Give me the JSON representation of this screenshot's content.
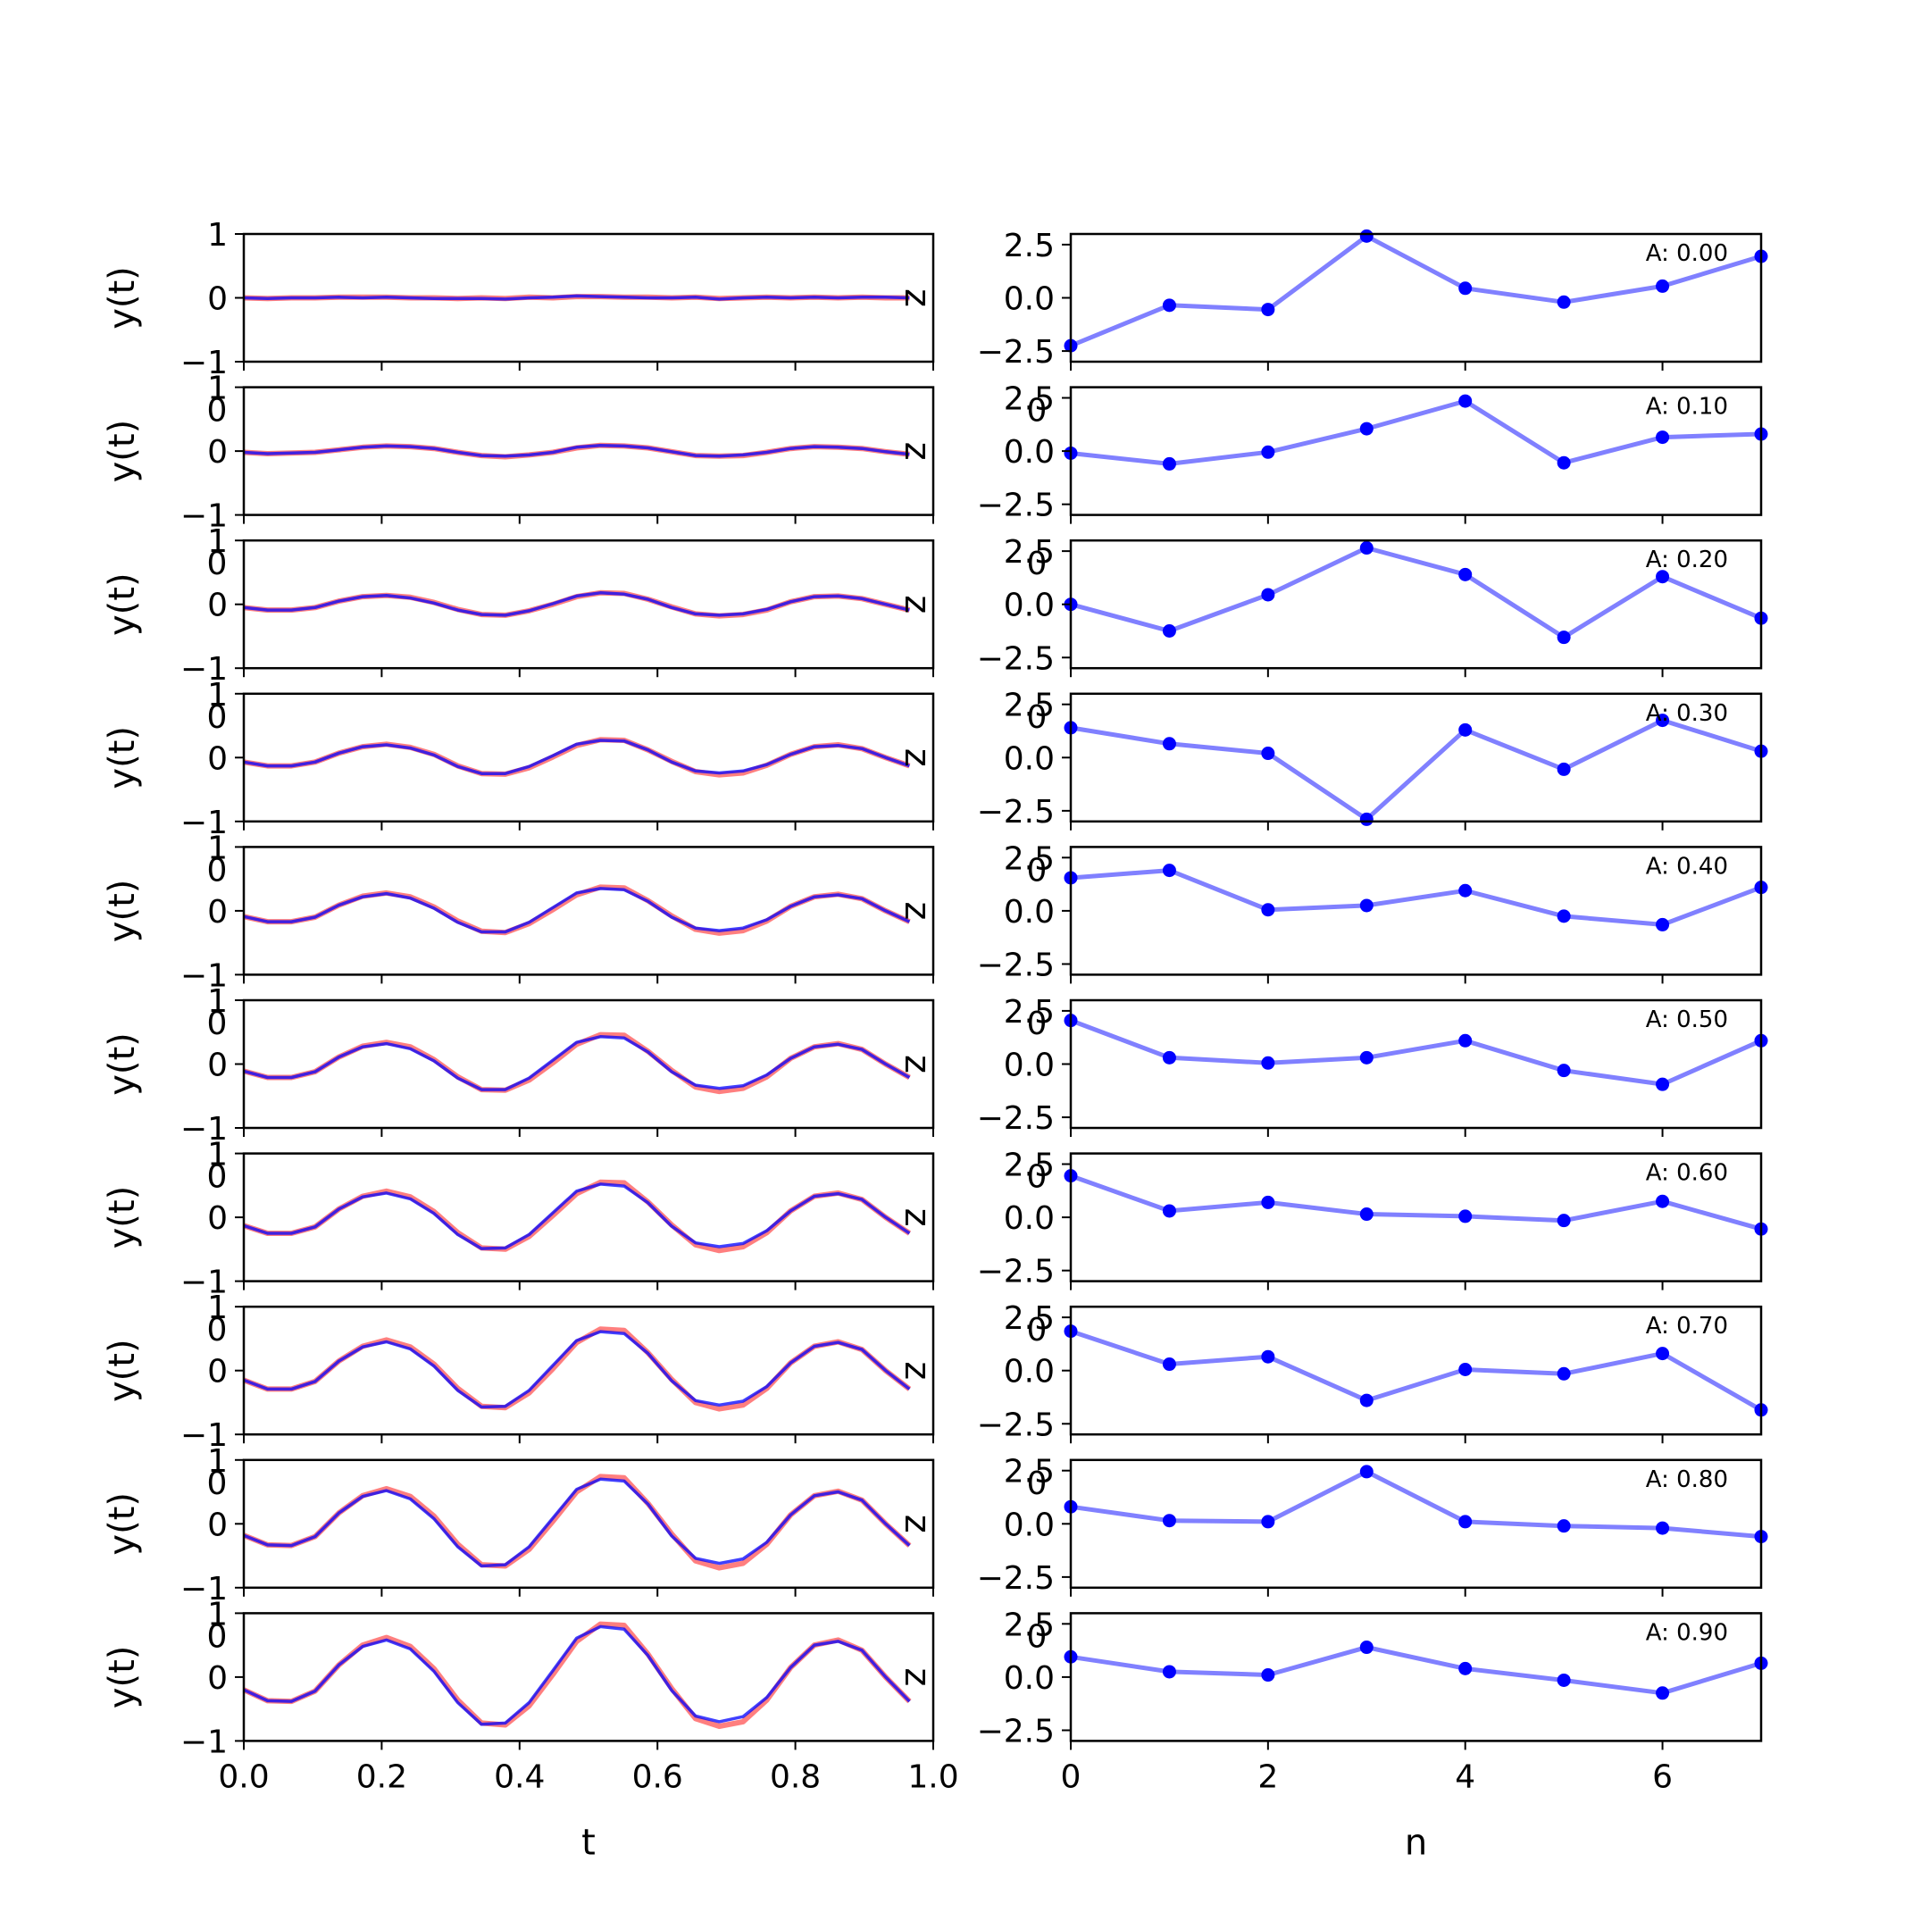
{
  "chart_data": [
    {
      "panel": "left",
      "type": "line",
      "xlabel": "t",
      "ylabel": "y(t)",
      "xlim": [
        0.0,
        1.0
      ],
      "ylim": [
        -1,
        1
      ],
      "xticks": [
        0.0,
        0.2,
        0.4,
        0.6,
        0.8,
        1.0
      ],
      "xtick_labels": [
        "0.0",
        "0.2",
        "0.4",
        "0.6",
        "0.8",
        "1.0"
      ],
      "yticks": [
        -1,
        0,
        1
      ],
      "ytick_labels": [
        "−1",
        "0",
        "1"
      ],
      "overlap_tick_text": "0",
      "right_marker": "z",
      "series_colors": {
        "red": "#ff3b3b",
        "blue": "#0000ff"
      },
      "x": [
        0.0,
        0.0345,
        0.069,
        0.1034,
        0.1379,
        0.1724,
        0.2069,
        0.2414,
        0.2759,
        0.3103,
        0.3448,
        0.3793,
        0.4138,
        0.4483,
        0.4828,
        0.5172,
        0.5517,
        0.5862,
        0.6207,
        0.6552,
        0.6897,
        0.7241,
        0.7586,
        0.7931,
        0.8276,
        0.8621,
        0.8966,
        0.931,
        0.9655
      ],
      "rows": [
        {
          "A": 0.0,
          "red": [
            0.0,
            -0.01,
            0.0,
            0.0,
            0.01,
            0.01,
            0.01,
            0.0,
            0.0,
            -0.01,
            0.0,
            -0.01,
            0.01,
            0.0,
            0.02,
            0.02,
            0.01,
            0.01,
            0.0,
            0.01,
            -0.01,
            0.0,
            0.01,
            0.0,
            0.01,
            0.0,
            0.01,
            0.0,
            0.0
          ],
          "blue": [
            0.0,
            -0.01,
            0.0,
            0.0,
            0.01,
            0.0,
            0.01,
            0.0,
            -0.01,
            -0.01,
            -0.01,
            -0.02,
            0.0,
            0.01,
            0.03,
            0.02,
            0.01,
            0.0,
            0.0,
            0.01,
            -0.02,
            0.0,
            0.01,
            0.0,
            0.01,
            0.0,
            0.01,
            0.01,
            0.0
          ]
        },
        {
          "A": 0.1,
          "red": [
            -0.02,
            -0.04,
            -0.03,
            -0.02,
            0.02,
            0.06,
            0.08,
            0.07,
            0.04,
            -0.02,
            -0.07,
            -0.09,
            -0.06,
            -0.02,
            0.05,
            0.09,
            0.08,
            0.05,
            -0.01,
            -0.07,
            -0.08,
            -0.07,
            -0.02,
            0.04,
            0.07,
            0.06,
            0.04,
            -0.01,
            -0.05
          ],
          "blue": [
            -0.02,
            -0.04,
            -0.03,
            -0.02,
            0.02,
            0.06,
            0.08,
            0.07,
            0.04,
            -0.02,
            -0.07,
            -0.08,
            -0.06,
            -0.02,
            0.06,
            0.09,
            0.08,
            0.05,
            -0.01,
            -0.07,
            -0.08,
            -0.06,
            -0.02,
            0.04,
            0.07,
            0.06,
            0.04,
            -0.01,
            -0.05
          ]
        },
        {
          "A": 0.2,
          "red": [
            -0.05,
            -0.09,
            -0.09,
            -0.05,
            0.05,
            0.12,
            0.14,
            0.11,
            0.03,
            -0.08,
            -0.16,
            -0.17,
            -0.1,
            0.0,
            0.12,
            0.18,
            0.17,
            0.08,
            -0.04,
            -0.15,
            -0.18,
            -0.16,
            -0.09,
            0.04,
            0.12,
            0.13,
            0.09,
            0.0,
            -0.09
          ],
          "blue": [
            -0.05,
            -0.09,
            -0.09,
            -0.05,
            0.05,
            0.12,
            0.14,
            0.1,
            0.02,
            -0.09,
            -0.16,
            -0.17,
            -0.1,
            0.01,
            0.13,
            0.18,
            0.16,
            0.08,
            -0.05,
            -0.15,
            -0.17,
            -0.15,
            -0.08,
            0.04,
            0.12,
            0.13,
            0.09,
            0.0,
            -0.09
          ]
        },
        {
          "A": 0.3,
          "red": [
            -0.07,
            -0.13,
            -0.13,
            -0.07,
            0.07,
            0.17,
            0.21,
            0.16,
            0.05,
            -0.13,
            -0.25,
            -0.26,
            -0.16,
            0.01,
            0.19,
            0.28,
            0.27,
            0.12,
            -0.06,
            -0.22,
            -0.27,
            -0.24,
            -0.12,
            0.05,
            0.17,
            0.2,
            0.14,
            0.0,
            -0.13
          ],
          "blue": [
            -0.07,
            -0.13,
            -0.13,
            -0.07,
            0.07,
            0.17,
            0.2,
            0.15,
            0.04,
            -0.14,
            -0.25,
            -0.25,
            -0.14,
            0.03,
            0.21,
            0.27,
            0.26,
            0.12,
            -0.07,
            -0.21,
            -0.24,
            -0.21,
            -0.11,
            0.05,
            0.17,
            0.19,
            0.14,
            0.0,
            -0.13
          ]
        },
        {
          "A": 0.4,
          "red": [
            -0.09,
            -0.17,
            -0.17,
            -0.1,
            0.09,
            0.23,
            0.28,
            0.22,
            0.06,
            -0.16,
            -0.32,
            -0.34,
            -0.2,
            0.02,
            0.25,
            0.37,
            0.36,
            0.16,
            -0.08,
            -0.29,
            -0.35,
            -0.31,
            -0.16,
            0.07,
            0.22,
            0.26,
            0.19,
            0.0,
            -0.17
          ],
          "blue": [
            -0.09,
            -0.17,
            -0.17,
            -0.1,
            0.09,
            0.22,
            0.27,
            0.2,
            0.04,
            -0.18,
            -0.33,
            -0.33,
            -0.18,
            0.05,
            0.28,
            0.35,
            0.33,
            0.15,
            -0.1,
            -0.27,
            -0.31,
            -0.27,
            -0.14,
            0.07,
            0.22,
            0.25,
            0.19,
            0.0,
            -0.17
          ]
        },
        {
          "A": 0.5,
          "red": [
            -0.11,
            -0.21,
            -0.21,
            -0.12,
            0.11,
            0.28,
            0.34,
            0.27,
            0.07,
            -0.2,
            -0.4,
            -0.41,
            -0.25,
            0.02,
            0.31,
            0.46,
            0.45,
            0.2,
            -0.1,
            -0.36,
            -0.43,
            -0.38,
            -0.2,
            0.09,
            0.27,
            0.32,
            0.23,
            0.0,
            -0.21
          ],
          "blue": [
            -0.11,
            -0.21,
            -0.21,
            -0.12,
            0.11,
            0.27,
            0.32,
            0.24,
            0.05,
            -0.22,
            -0.4,
            -0.4,
            -0.22,
            0.06,
            0.34,
            0.43,
            0.41,
            0.19,
            -0.12,
            -0.33,
            -0.38,
            -0.34,
            -0.17,
            0.09,
            0.27,
            0.31,
            0.23,
            0.0,
            -0.21
          ]
        },
        {
          "A": 0.6,
          "red": [
            -0.13,
            -0.25,
            -0.25,
            -0.15,
            0.13,
            0.33,
            0.41,
            0.32,
            0.09,
            -0.24,
            -0.48,
            -0.5,
            -0.3,
            0.03,
            0.37,
            0.55,
            0.54,
            0.24,
            -0.12,
            -0.43,
            -0.52,
            -0.46,
            -0.24,
            0.1,
            0.33,
            0.38,
            0.28,
            0.0,
            -0.25
          ],
          "blue": [
            -0.13,
            -0.25,
            -0.25,
            -0.15,
            0.13,
            0.32,
            0.38,
            0.29,
            0.06,
            -0.27,
            -0.49,
            -0.48,
            -0.27,
            0.07,
            0.41,
            0.52,
            0.49,
            0.23,
            -0.14,
            -0.4,
            -0.46,
            -0.41,
            -0.21,
            0.1,
            0.33,
            0.37,
            0.28,
            0.0,
            -0.25
          ]
        },
        {
          "A": 0.7,
          "red": [
            -0.15,
            -0.29,
            -0.29,
            -0.17,
            0.15,
            0.38,
            0.48,
            0.37,
            0.1,
            -0.28,
            -0.56,
            -0.58,
            -0.35,
            0.03,
            0.44,
            0.65,
            0.63,
            0.28,
            -0.14,
            -0.5,
            -0.6,
            -0.54,
            -0.28,
            0.12,
            0.38,
            0.45,
            0.33,
            0.0,
            -0.29
          ],
          "blue": [
            -0.15,
            -0.29,
            -0.29,
            -0.17,
            0.15,
            0.37,
            0.45,
            0.34,
            0.07,
            -0.31,
            -0.57,
            -0.56,
            -0.31,
            0.08,
            0.47,
            0.61,
            0.58,
            0.27,
            -0.16,
            -0.47,
            -0.54,
            -0.48,
            -0.25,
            0.12,
            0.38,
            0.44,
            0.33,
            0.0,
            -0.29
          ]
        },
        {
          "A": 0.8,
          "red": [
            -0.18,
            -0.33,
            -0.34,
            -0.2,
            0.17,
            0.44,
            0.55,
            0.43,
            0.12,
            -0.32,
            -0.64,
            -0.66,
            -0.4,
            0.04,
            0.5,
            0.74,
            0.72,
            0.32,
            -0.16,
            -0.58,
            -0.69,
            -0.62,
            -0.32,
            0.14,
            0.44,
            0.51,
            0.37,
            0.0,
            -0.34
          ],
          "blue": [
            -0.18,
            -0.33,
            -0.34,
            -0.2,
            0.17,
            0.43,
            0.52,
            0.39,
            0.08,
            -0.36,
            -0.66,
            -0.64,
            -0.36,
            0.09,
            0.54,
            0.7,
            0.67,
            0.31,
            -0.19,
            -0.54,
            -0.62,
            -0.55,
            -0.29,
            0.14,
            0.44,
            0.5,
            0.37,
            0.0,
            -0.34
          ]
        },
        {
          "A": 0.9,
          "red": [
            -0.2,
            -0.37,
            -0.38,
            -0.22,
            0.19,
            0.5,
            0.62,
            0.48,
            0.13,
            -0.36,
            -0.72,
            -0.75,
            -0.45,
            0.04,
            0.56,
            0.83,
            0.81,
            0.36,
            -0.18,
            -0.65,
            -0.77,
            -0.7,
            -0.36,
            0.15,
            0.5,
            0.58,
            0.42,
            0.0,
            -0.38
          ],
          "blue": [
            -0.2,
            -0.37,
            -0.38,
            -0.22,
            0.19,
            0.48,
            0.58,
            0.44,
            0.09,
            -0.4,
            -0.74,
            -0.72,
            -0.4,
            0.1,
            0.61,
            0.79,
            0.75,
            0.34,
            -0.21,
            -0.61,
            -0.7,
            -0.62,
            -0.32,
            0.15,
            0.5,
            0.56,
            0.42,
            0.0,
            -0.38
          ]
        }
      ]
    },
    {
      "panel": "right",
      "type": "line",
      "xlabel": "n",
      "ylabel": "",
      "xlim": [
        0,
        7
      ],
      "ylim": [
        -3,
        3
      ],
      "xticks": [
        0,
        2,
        4,
        6
      ],
      "xtick_labels": [
        "0",
        "2",
        "4",
        "6"
      ],
      "yticks": [
        -2.5,
        0.0,
        2.5
      ],
      "ytick_labels": [
        "−2.5",
        "0.0",
        "2.5"
      ],
      "overlap_tick_text": "0",
      "series_color": "#0000ff",
      "line_color": "#8080ff",
      "x": [
        0,
        1,
        2,
        3,
        4,
        5,
        6,
        7
      ],
      "rows": [
        {
          "label": "A: 0.00",
          "y": [
            -2.25,
            -0.35,
            -0.55,
            2.9,
            0.45,
            -0.2,
            0.55,
            1.95
          ]
        },
        {
          "label": "A: 0.10",
          "y": [
            -0.1,
            -0.6,
            -0.05,
            1.05,
            2.35,
            -0.55,
            0.65,
            0.8
          ]
        },
        {
          "label": "A: 0.20",
          "y": [
            0.0,
            -1.25,
            0.45,
            2.65,
            1.4,
            -1.55,
            1.3,
            -0.65
          ]
        },
        {
          "label": "A: 0.30",
          "y": [
            1.4,
            0.65,
            0.2,
            -2.9,
            1.3,
            -0.55,
            1.75,
            0.3
          ]
        },
        {
          "label": "A: 0.40",
          "y": [
            1.55,
            1.9,
            0.05,
            0.25,
            0.95,
            -0.25,
            -0.65,
            1.1
          ]
        },
        {
          "label": "A: 0.50",
          "y": [
            2.05,
            0.3,
            0.05,
            0.3,
            1.1,
            -0.3,
            -0.95,
            1.1
          ]
        },
        {
          "label": "A: 0.60",
          "y": [
            1.95,
            0.3,
            0.7,
            0.15,
            0.05,
            -0.15,
            0.75,
            -0.55
          ]
        },
        {
          "label": "A: 0.70",
          "y": [
            1.85,
            0.3,
            0.65,
            -1.4,
            0.05,
            -0.15,
            0.8,
            -1.85
          ]
        },
        {
          "label": "A: 0.80",
          "y": [
            0.8,
            0.15,
            0.1,
            2.45,
            0.1,
            -0.1,
            -0.2,
            -0.6
          ]
        },
        {
          "label": "A: 0.90",
          "y": [
            0.95,
            0.25,
            0.1,
            1.4,
            0.4,
            -0.15,
            -0.75,
            0.65
          ]
        }
      ]
    }
  ]
}
